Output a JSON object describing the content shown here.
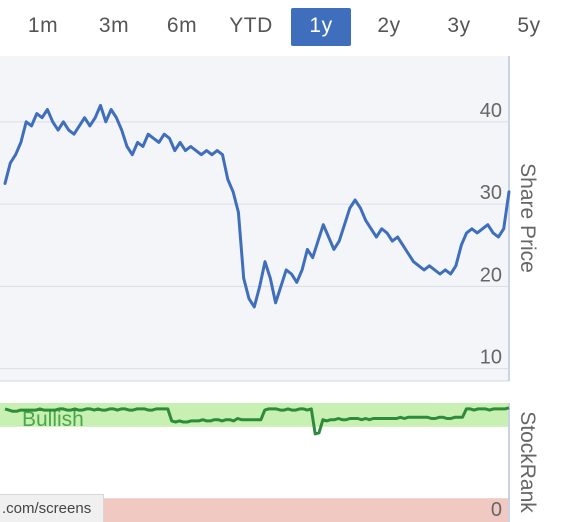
{
  "ranges": {
    "items": [
      {
        "label": "1m",
        "active": false
      },
      {
        "label": "3m",
        "active": false
      },
      {
        "label": "6m",
        "active": false
      },
      {
        "label": "YTD",
        "active": false
      },
      {
        "label": "1y",
        "active": true
      },
      {
        "label": "2y",
        "active": false
      },
      {
        "label": "3y",
        "active": false
      },
      {
        "label": "5y",
        "active": false
      }
    ]
  },
  "footer": {
    "url_fragment": ".com/screens"
  },
  "colors": {
    "accent": "#3f6fbc",
    "price_line": "#3f6fbc",
    "rank_line": "#2e8b3a",
    "bullish_zone": "#c8f0b2",
    "bearish_zone": "#f0c9c2",
    "plot_bg": "#f4f5f8",
    "gridline": "#d9dde6"
  },
  "chart_data": [
    {
      "type": "line",
      "ylabel": "Share Price",
      "ylim": [
        8.5,
        48
      ],
      "y_ticks": [
        10,
        20,
        30,
        40
      ],
      "y_axis_position": "right",
      "grid": true,
      "series": [
        {
          "values": [
            32.5,
            35.0,
            36.0,
            37.5,
            40.0,
            39.5,
            41.0,
            40.5,
            41.5,
            40.0,
            39.0,
            40.0,
            39.0,
            38.5,
            39.5,
            40.5,
            39.5,
            40.5,
            42.0,
            40.0,
            41.5,
            40.5,
            39.0,
            37.0,
            36.0,
            37.5,
            37.0,
            38.5,
            38.0,
            37.5,
            38.5,
            38.0,
            36.5,
            37.5,
            36.5,
            37.0,
            36.5,
            36.0,
            36.5,
            36.0,
            36.5,
            36.0,
            33.0,
            31.5,
            29.0,
            21.0,
            18.5,
            17.5,
            20.0,
            23.0,
            21.0,
            18.0,
            20.0,
            22.0,
            21.5,
            20.5,
            22.0,
            24.5,
            23.5,
            25.5,
            27.5,
            26.0,
            24.5,
            25.5,
            27.5,
            29.5,
            30.5,
            29.5,
            28.0,
            27.0,
            26.0,
            27.0,
            26.5,
            25.5,
            26.0,
            25.0,
            24.0,
            23.0,
            22.5,
            22.0,
            22.5,
            22.0,
            21.5,
            22.0,
            21.5,
            22.5,
            25.0,
            26.5,
            27.0,
            26.5,
            27.0,
            27.5,
            26.5,
            26.0,
            27.0,
            31.5
          ]
        }
      ]
    },
    {
      "type": "line",
      "ylabel": "StockRank",
      "ylim": [
        0,
        100
      ],
      "y_ticks": [
        0
      ],
      "zones": [
        {
          "label": "Bullish",
          "from": 80,
          "to": 100
        },
        {
          "label": "",
          "from": 0,
          "to": 20
        }
      ],
      "series": [
        {
          "values": [
            95,
            94,
            93,
            93,
            94,
            94,
            94,
            94,
            94,
            95,
            94,
            94,
            94,
            94,
            95,
            95,
            94,
            94,
            95,
            94,
            94,
            95,
            95,
            94,
            95,
            94,
            94,
            95,
            95,
            94,
            95,
            95,
            94,
            94,
            95,
            95,
            95,
            94,
            94,
            95,
            95,
            95,
            95,
            85,
            84,
            85,
            84,
            84,
            85,
            85,
            85,
            86,
            85,
            85,
            86,
            86,
            85,
            86,
            86,
            85,
            87,
            86,
            86,
            86,
            86,
            86,
            86,
            94,
            95,
            95,
            95,
            94,
            94,
            95,
            94,
            94,
            95,
            95,
            94,
            95,
            74,
            75,
            86,
            85,
            86,
            86,
            87,
            86,
            86,
            87,
            87,
            87,
            86,
            87,
            86,
            87,
            87,
            87,
            87,
            87,
            87,
            87,
            88,
            87,
            88,
            88,
            88,
            88,
            88,
            88,
            87,
            87,
            88,
            88,
            87,
            87,
            88,
            88,
            88,
            95,
            95,
            94,
            95,
            95,
            95,
            94,
            95,
            95,
            95,
            95,
            96
          ]
        }
      ]
    }
  ]
}
